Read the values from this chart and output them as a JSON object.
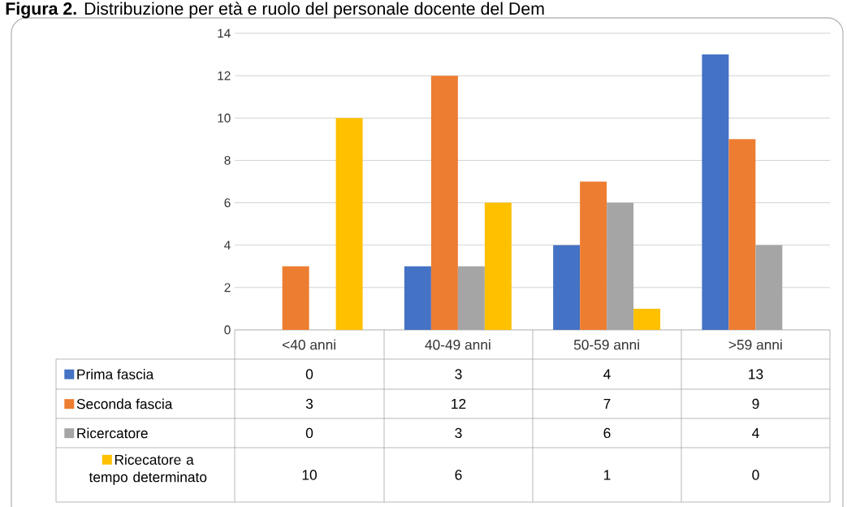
{
  "chart_data": {
    "type": "bar",
    "title": "**Figura 2.** Distribuzione per età e ruolo del personale docente del Dem",
    "categories": [
      "<40 anni",
      "40-49 anni",
      "50-59 anni",
      ">59 anni"
    ],
    "series": [
      {
        "name": "Prima fascia",
        "color": "#4472c4",
        "values": [
          0,
          3,
          4,
          13
        ]
      },
      {
        "name": "Seconda fascia",
        "color": "#ed7d31",
        "values": [
          3,
          12,
          7,
          9
        ]
      },
      {
        "name": "Ricercatore",
        "color": "#a5a5a5",
        "values": [
          0,
          3,
          6,
          4
        ]
      },
      {
        "name": "Ricecatore a tempo determinato",
        "color": "#ffc000",
        "values": [
          10,
          6,
          1,
          0
        ]
      }
    ],
    "ylim": [
      0,
      14
    ],
    "yticks": [
      0,
      2,
      4,
      6,
      8,
      10,
      12,
      14
    ],
    "grid": "y",
    "legend": "bottom",
    "data_labels": true
  }
}
